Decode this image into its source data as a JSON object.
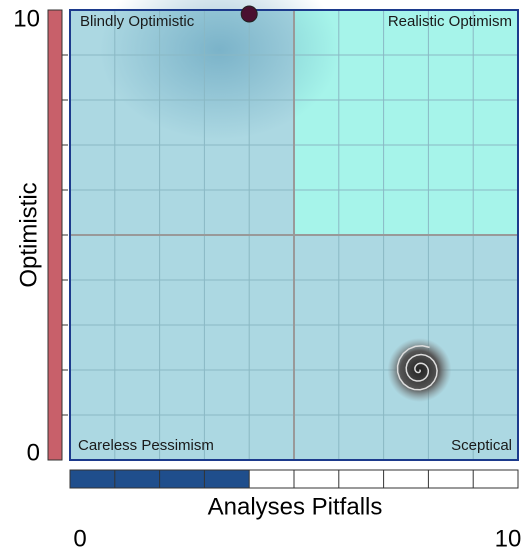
{
  "chart_data": {
    "type": "scatter",
    "xlabel": "Analyses Pitfalls",
    "ylabel": "Optimistic",
    "quadrants": [
      "Blindly Optimistic",
      "Realistic Optimism",
      "Careless Pessimism",
      "Sceptical"
    ],
    "x": [
      4,
      7.8
    ],
    "values": [
      10,
      2
    ],
    "x_progress": 4,
    "y_progress": 10,
    "xlim": [
      0,
      10
    ],
    "ylim": [
      0,
      10
    ],
    "xticks": [
      0,
      10
    ],
    "yticks": [
      0,
      10
    ],
    "grid": true
  }
}
